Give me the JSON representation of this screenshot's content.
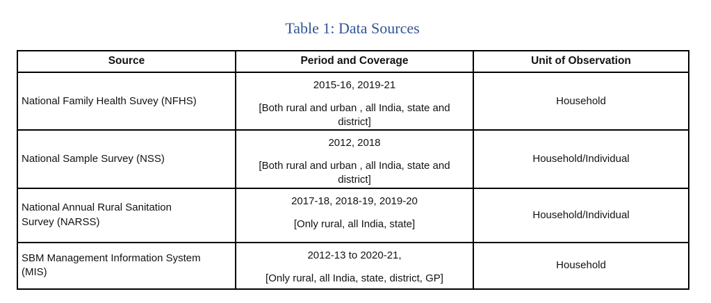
{
  "title": "Table 1: Data Sources",
  "accent_color": "#2F5496",
  "table": {
    "headers": [
      "Source",
      "Period and Coverage",
      "Unit of Observation"
    ],
    "rows": [
      {
        "source": "National Family Health Suvey (NFHS)",
        "period": "2015-16, 2019-21",
        "coverage": "[Both rural and urban , all India, state and\ndistrict]",
        "unit": "Household"
      },
      {
        "source": "National Sample Survey (NSS)",
        "period": "2012, 2018",
        "coverage": "[Both rural and urban , all India, state and\ndistrict]",
        "unit": "Household/Individual"
      },
      {
        "source": "National Annual Rural Sanitation\nSurvey (NARSS)",
        "period": "2017-18, 2018-19, 2019-20",
        "coverage": "[Only rural, all India, state]",
        "unit": "Household/Individual"
      },
      {
        "source": "SBM Management Information System\n(MIS)",
        "period": "2012-13 to 2020-21,",
        "coverage": "[Only rural, all India, state, district, GP]",
        "unit": "Household"
      }
    ]
  }
}
